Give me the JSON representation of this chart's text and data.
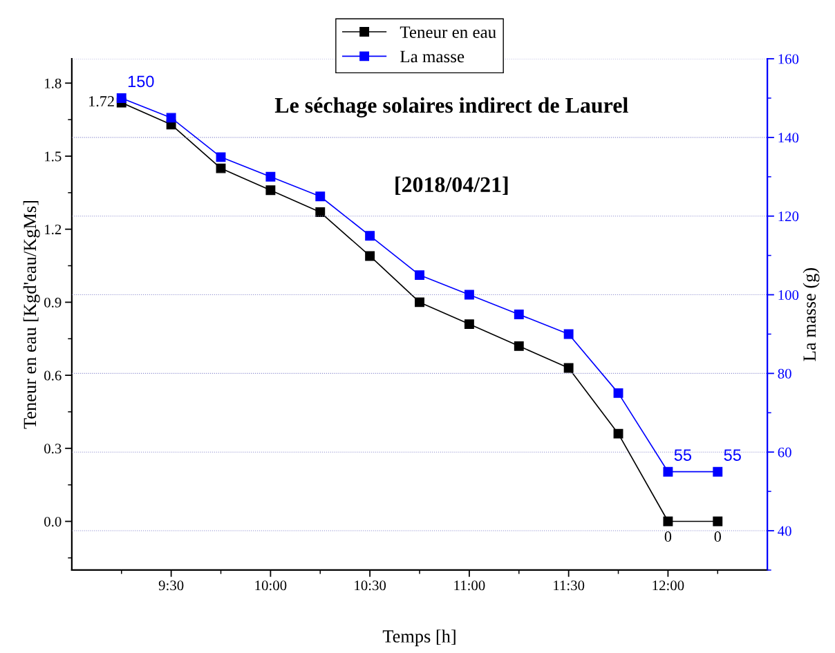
{
  "chart_data": {
    "type": "line",
    "title": "Le séchage solaires indirect de Laurel",
    "subtitle": "[2018/04/21]",
    "xlabel": "Temps [h]",
    "ylabel": "Teneur en eau [Kgd'eau/KgMs]",
    "y2label": "La masse (g)",
    "x": [
      9.25,
      9.5,
      9.75,
      10,
      10.25,
      10.5,
      10.75,
      11,
      11.25,
      11.5,
      11.75,
      12,
      12.25
    ],
    "series": [
      {
        "name": "Teneur en eau",
        "color": "#000000",
        "values": [
          1.72,
          1.63,
          1.45,
          1.36,
          1.27,
          1.09,
          0.9,
          0.81,
          0.72,
          0.63,
          0.36,
          0,
          0
        ],
        "value_labels": [
          "1.72",
          null,
          null,
          null,
          null,
          null,
          null,
          null,
          null,
          null,
          null,
          "0",
          "0"
        ]
      },
      {
        "name": "La masse",
        "color": "#0000ff",
        "axis": "y2",
        "values": [
          150,
          145,
          135,
          130,
          125,
          115,
          105,
          100,
          95,
          90,
          75,
          55,
          55
        ],
        "value_labels": [
          "150",
          null,
          null,
          null,
          null,
          null,
          null,
          null,
          null,
          null,
          null,
          "55",
          "55"
        ]
      }
    ],
    "xlim": [
      9,
      12.5
    ],
    "xticks": [
      {
        "value": 9.5,
        "label": "9:30"
      },
      {
        "value": 10,
        "label": "10:00"
      },
      {
        "value": 10.5,
        "label": "10:30"
      },
      {
        "value": 11,
        "label": "11:00"
      },
      {
        "value": 11.5,
        "label": "11:30"
      },
      {
        "value": 12,
        "label": "12:00"
      }
    ],
    "ylim": [
      -0.2,
      1.9
    ],
    "yticks": [
      {
        "value": 0,
        "label": "0.0"
      },
      0.3,
      0.6,
      0.9,
      1.2,
      1.5,
      1.8
    ],
    "y2lim": [
      30,
      160
    ],
    "y2ticks": [
      40,
      60,
      80,
      100,
      120,
      140,
      160
    ],
    "grid": "y",
    "legend": "top",
    "marker": "square",
    "line_style": "solid"
  }
}
